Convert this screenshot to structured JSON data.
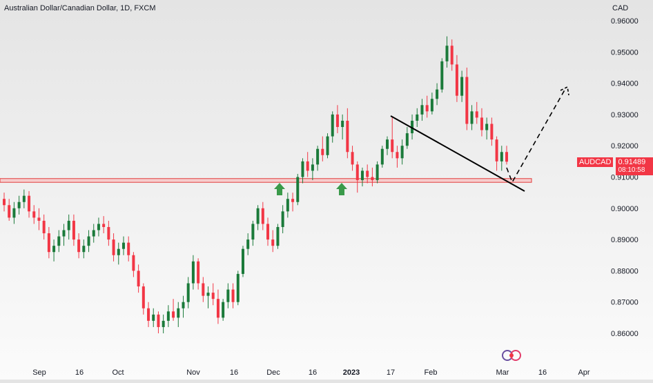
{
  "header": {
    "title": "Australian Dollar/Canadian Dollar, 1D, FXCM",
    "currency": "CAD"
  },
  "price_tag": {
    "symbol": "AUDCAD",
    "price": "0.91489",
    "countdown": "08:10:58"
  },
  "colors": {
    "bull": "#1b7a3a",
    "bear": "#f23645",
    "zone_fill": "#f7c7c7",
    "zone_stroke": "#e23c3c",
    "arrow": "#3a9a4a",
    "trendline": "#000000"
  },
  "icons": {
    "up_arrow": "arrow-up-icon",
    "logo": "tradingview-logo-icon"
  },
  "chart_data": {
    "type": "candlestick",
    "title": "Australian Dollar/Canadian Dollar, 1D, FXCM",
    "ylabel": "CAD",
    "ylim": [
      0.855,
      0.965
    ],
    "yticks": [
      "0.96000",
      "0.95000",
      "0.94000",
      "0.93000",
      "0.92000",
      "0.91000",
      "0.90000",
      "0.89000",
      "0.88000",
      "0.87000",
      "0.86000"
    ],
    "xticks": [
      "Sep",
      "16",
      "Oct",
      "Nov",
      "16",
      "Dec",
      "16",
      "2023",
      "17",
      "Feb",
      "Mar",
      "16",
      "Apr"
    ],
    "xtick_bold": "2023",
    "grid": false,
    "last_price": 0.91489,
    "support_zone": [
      0.9083,
      0.9095
    ],
    "annotations": {
      "support_touch_arrows": [
        "Dec",
        "Dec"
      ],
      "trendline": {
        "from": [
          "Jan",
          0.929
        ],
        "to": [
          "Mar",
          0.906
        ]
      },
      "projection": {
        "from": [
          "Mar",
          0.9085
        ],
        "to": [
          "Mar",
          0.9385
        ]
      }
    },
    "candles": [
      [
        0.903,
        0.905,
        0.899,
        0.901
      ],
      [
        0.901,
        0.903,
        0.896,
        0.897
      ],
      [
        0.897,
        0.902,
        0.895,
        0.9
      ],
      [
        0.9,
        0.904,
        0.898,
        0.902
      ],
      [
        0.902,
        0.906,
        0.9,
        0.904
      ],
      [
        0.904,
        0.9055,
        0.897,
        0.899
      ],
      [
        0.899,
        0.901,
        0.895,
        0.897
      ],
      [
        0.897,
        0.9,
        0.893,
        0.896
      ],
      [
        0.896,
        0.898,
        0.89,
        0.892
      ],
      [
        0.892,
        0.894,
        0.884,
        0.886
      ],
      [
        0.886,
        0.89,
        0.883,
        0.888
      ],
      [
        0.888,
        0.893,
        0.886,
        0.891
      ],
      [
        0.891,
        0.895,
        0.888,
        0.893
      ],
      [
        0.893,
        0.898,
        0.89,
        0.896
      ],
      [
        0.896,
        0.898,
        0.888,
        0.89
      ],
      [
        0.89,
        0.892,
        0.884,
        0.886
      ],
      [
        0.886,
        0.89,
        0.884,
        0.888
      ],
      [
        0.888,
        0.893,
        0.886,
        0.891
      ],
      [
        0.891,
        0.895,
        0.889,
        0.893
      ],
      [
        0.893,
        0.897,
        0.891,
        0.895
      ],
      [
        0.895,
        0.8975,
        0.892,
        0.894
      ],
      [
        0.894,
        0.896,
        0.888,
        0.89
      ],
      [
        0.89,
        0.892,
        0.883,
        0.885
      ],
      [
        0.885,
        0.889,
        0.882,
        0.887
      ],
      [
        0.887,
        0.891,
        0.885,
        0.889
      ],
      [
        0.889,
        0.891,
        0.883,
        0.885
      ],
      [
        0.885,
        0.886,
        0.878,
        0.88
      ],
      [
        0.88,
        0.882,
        0.873,
        0.875
      ],
      [
        0.875,
        0.876,
        0.866,
        0.868
      ],
      [
        0.868,
        0.87,
        0.862,
        0.864
      ],
      [
        0.864,
        0.868,
        0.862,
        0.866
      ],
      [
        0.866,
        0.867,
        0.86,
        0.862
      ],
      [
        0.862,
        0.866,
        0.86,
        0.864
      ],
      [
        0.864,
        0.869,
        0.862,
        0.867
      ],
      [
        0.867,
        0.871,
        0.864,
        0.865
      ],
      [
        0.865,
        0.87,
        0.862,
        0.868
      ],
      [
        0.868,
        0.872,
        0.865,
        0.87
      ],
      [
        0.87,
        0.878,
        0.868,
        0.876
      ],
      [
        0.876,
        0.885,
        0.874,
        0.883
      ],
      [
        0.883,
        0.884,
        0.874,
        0.876
      ],
      [
        0.876,
        0.878,
        0.87,
        0.872
      ],
      [
        0.872,
        0.875,
        0.868,
        0.873
      ],
      [
        0.873,
        0.876,
        0.869,
        0.871
      ],
      [
        0.871,
        0.874,
        0.863,
        0.865
      ],
      [
        0.865,
        0.871,
        0.864,
        0.87
      ],
      [
        0.87,
        0.876,
        0.868,
        0.874
      ],
      [
        0.874,
        0.876,
        0.868,
        0.87
      ],
      [
        0.87,
        0.88,
        0.869,
        0.879
      ],
      [
        0.879,
        0.888,
        0.878,
        0.887
      ],
      [
        0.887,
        0.892,
        0.885,
        0.89
      ],
      [
        0.89,
        0.896,
        0.888,
        0.895
      ],
      [
        0.895,
        0.901,
        0.893,
        0.9
      ],
      [
        0.9,
        0.902,
        0.893,
        0.895
      ],
      [
        0.895,
        0.897,
        0.888,
        0.89
      ],
      [
        0.89,
        0.893,
        0.886,
        0.888
      ],
      [
        0.888,
        0.895,
        0.887,
        0.894
      ],
      [
        0.894,
        0.901,
        0.892,
        0.899
      ],
      [
        0.899,
        0.905,
        0.897,
        0.903
      ],
      [
        0.903,
        0.905,
        0.899,
        0.902
      ],
      [
        0.902,
        0.911,
        0.901,
        0.91
      ],
      [
        0.91,
        0.916,
        0.908,
        0.915
      ],
      [
        0.915,
        0.918,
        0.91,
        0.912
      ],
      [
        0.912,
        0.916,
        0.909,
        0.914
      ],
      [
        0.914,
        0.92,
        0.912,
        0.919
      ],
      [
        0.919,
        0.923,
        0.915,
        0.917
      ],
      [
        0.917,
        0.924,
        0.916,
        0.923
      ],
      [
        0.923,
        0.931,
        0.921,
        0.93
      ],
      [
        0.93,
        0.933,
        0.924,
        0.926
      ],
      [
        0.926,
        0.93,
        0.922,
        0.928
      ],
      [
        0.928,
        0.932,
        0.916,
        0.918
      ],
      [
        0.918,
        0.92,
        0.912,
        0.914
      ],
      [
        0.914,
        0.915,
        0.905,
        0.909
      ],
      [
        0.909,
        0.913,
        0.907,
        0.912
      ],
      [
        0.912,
        0.914,
        0.908,
        0.91
      ],
      [
        0.91,
        0.913,
        0.907,
        0.909
      ],
      [
        0.909,
        0.915,
        0.908,
        0.914
      ],
      [
        0.914,
        0.92,
        0.913,
        0.919
      ],
      [
        0.919,
        0.923,
        0.917,
        0.922
      ],
      [
        0.922,
        0.929,
        0.916,
        0.918
      ],
      [
        0.918,
        0.92,
        0.913,
        0.916
      ],
      [
        0.916,
        0.922,
        0.914,
        0.92
      ],
      [
        0.92,
        0.926,
        0.919,
        0.924
      ],
      [
        0.924,
        0.93,
        0.922,
        0.928
      ],
      [
        0.928,
        0.932,
        0.926,
        0.93
      ],
      [
        0.93,
        0.935,
        0.928,
        0.933
      ],
      [
        0.933,
        0.936,
        0.929,
        0.931
      ],
      [
        0.931,
        0.937,
        0.93,
        0.935
      ],
      [
        0.935,
        0.94,
        0.933,
        0.938
      ],
      [
        0.938,
        0.948,
        0.937,
        0.947
      ],
      [
        0.947,
        0.955,
        0.945,
        0.952
      ],
      [
        0.952,
        0.954,
        0.944,
        0.946
      ],
      [
        0.946,
        0.949,
        0.934,
        0.936
      ],
      [
        0.936,
        0.944,
        0.934,
        0.942
      ],
      [
        0.942,
        0.945,
        0.925,
        0.927
      ],
      [
        0.927,
        0.933,
        0.925,
        0.931
      ],
      [
        0.931,
        0.934,
        0.927,
        0.929
      ],
      [
        0.929,
        0.932,
        0.923,
        0.925
      ],
      [
        0.925,
        0.929,
        0.922,
        0.927
      ],
      [
        0.927,
        0.929,
        0.92,
        0.922
      ],
      [
        0.922,
        0.923,
        0.912,
        0.915
      ],
      [
        0.915,
        0.92,
        0.912,
        0.918
      ],
      [
        0.918,
        0.92,
        0.914,
        0.9149
      ]
    ]
  }
}
